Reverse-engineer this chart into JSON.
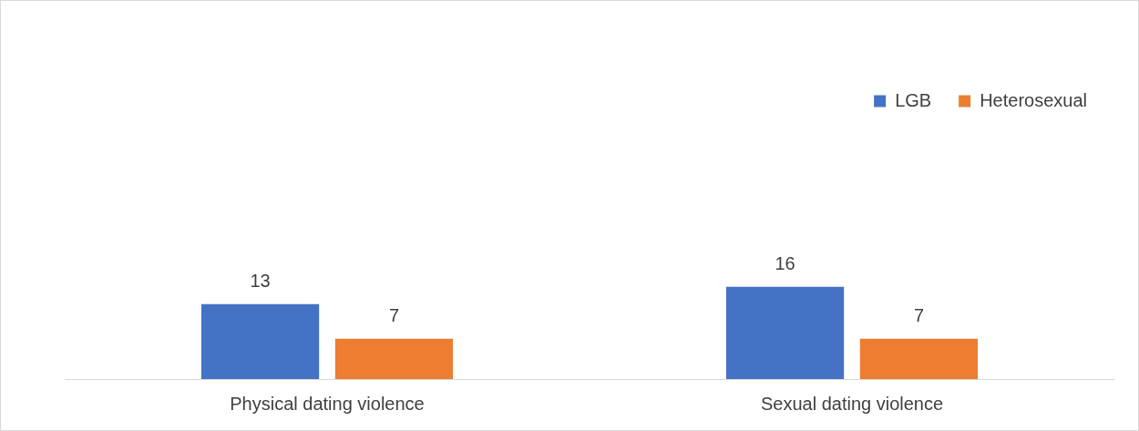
{
  "chart_data": {
    "type": "bar",
    "categories": [
      "Physical dating violence",
      "Sexual dating violence"
    ],
    "series": [
      {
        "name": "LGB",
        "color": "#4472c4",
        "values": [
          13,
          16
        ]
      },
      {
        "name": "Heterosexual",
        "color": "#ed7d31",
        "values": [
          7,
          7
        ]
      }
    ],
    "tick_labels": "x",
    "grid": false,
    "legend": "top right",
    "data_labels": true
  }
}
